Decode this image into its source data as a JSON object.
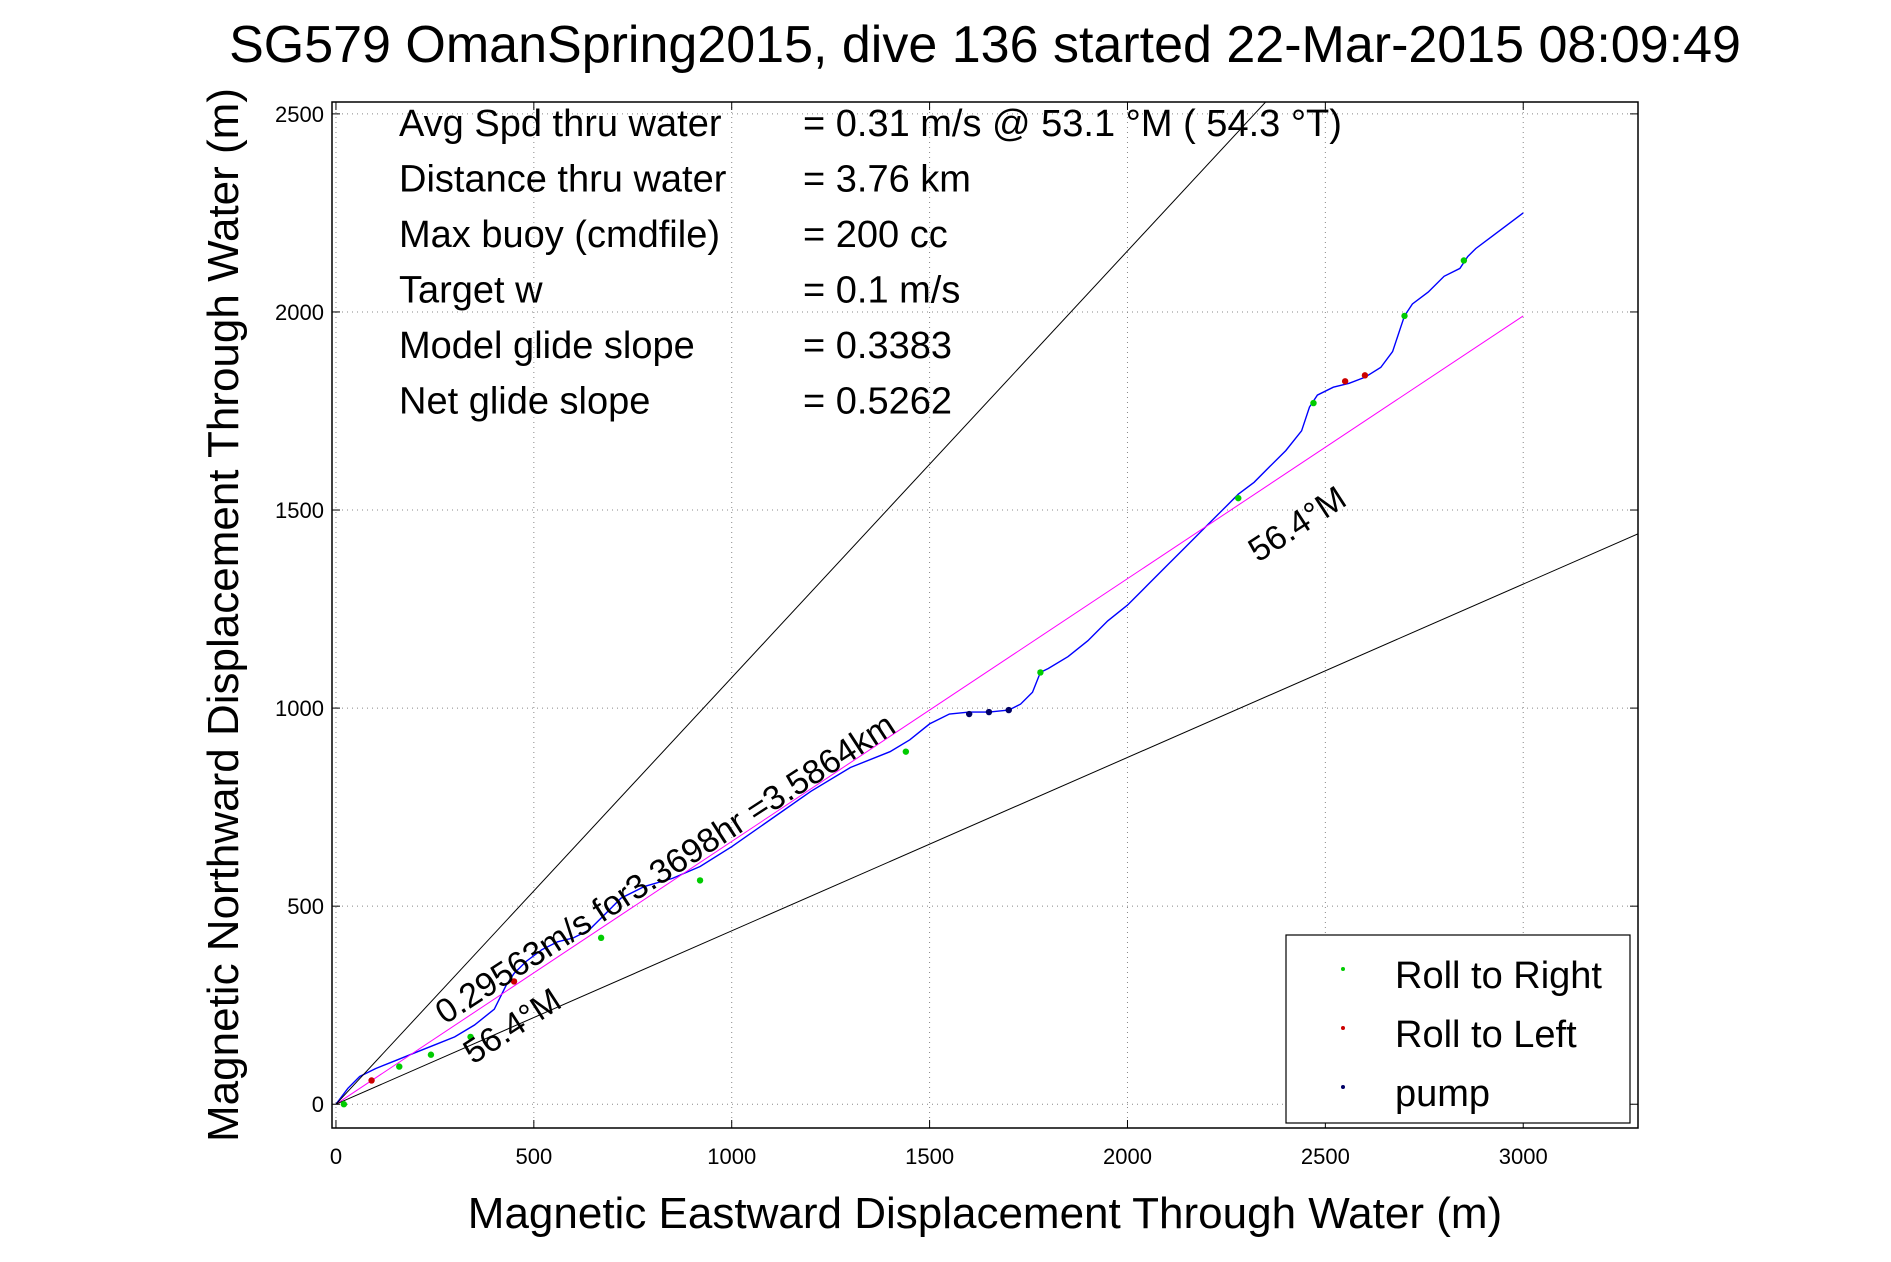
{
  "chart_data": {
    "type": "line",
    "title": "SG579 OmanSpring2015, dive 136 started 22-Mar-2015 08:09:49",
    "xlabel": "Magnetic Eastward Displacement Through Water (m)",
    "ylabel": "Magnetic Northward Displacement Through Water (m)",
    "xlim": [
      -10,
      3290
    ],
    "ylim": [
      -60,
      2530
    ],
    "xticks": [
      0,
      500,
      1000,
      1500,
      2000,
      2500,
      3000
    ],
    "yticks": [
      0,
      500,
      1000,
      1500,
      2000,
      2500
    ],
    "xtick_labels": [
      "0",
      "500",
      "1000",
      "1500",
      "2000",
      "2500",
      "3000"
    ],
    "ytick_labels": [
      "0",
      "500",
      "1000",
      "1500",
      "2000",
      "2500"
    ],
    "grid": true,
    "info_text": [
      {
        "label": "Avg Spd thru water",
        "value": "=  0.31 m/s @  53.1 °M ( 54.3 °T)"
      },
      {
        "label": "Distance thru water",
        "value": "=  3.76 km"
      },
      {
        "label": "Max buoy (cmdfile)",
        "value": "= 200 cc"
      },
      {
        "label": "Target w",
        "value": "= 0.1 m/s"
      },
      {
        "label": "Model glide slope",
        "value": "= 0.3383"
      },
      {
        "label": "Net glide slope",
        "value": "= 0.5262"
      }
    ],
    "annotations": {
      "current_text": "0.29563m/s for3.3698hr =3.5864km",
      "heading_upper": "56.4°M",
      "heading_lower": "56.4°M"
    },
    "series": [
      {
        "name": "track",
        "color": "#0000ff",
        "x": [
          0,
          30,
          60,
          100,
          150,
          200,
          250,
          300,
          350,
          400,
          430,
          450,
          480,
          520,
          560,
          600,
          640,
          680,
          720,
          780,
          850,
          920,
          1000,
          1100,
          1200,
          1300,
          1400,
          1450,
          1500,
          1550,
          1600,
          1650,
          1700,
          1730,
          1760,
          1780,
          1800,
          1850,
          1900,
          1950,
          2000,
          2050,
          2100,
          2150,
          2200,
          2250,
          2280,
          2320,
          2360,
          2400,
          2440,
          2460,
          2480,
          2520,
          2560,
          2600,
          2640,
          2670,
          2690,
          2700,
          2720,
          2760,
          2800,
          2840,
          2860,
          2880,
          2920,
          2960,
          3000
        ],
        "y": [
          0,
          40,
          70,
          90,
          110,
          130,
          150,
          170,
          200,
          240,
          300,
          330,
          360,
          390,
          410,
          420,
          440,
          480,
          520,
          550,
          570,
          600,
          650,
          720,
          790,
          850,
          890,
          920,
          960,
          985,
          990,
          990,
          995,
          1010,
          1040,
          1090,
          1100,
          1130,
          1170,
          1220,
          1260,
          1310,
          1360,
          1410,
          1460,
          1510,
          1540,
          1570,
          1610,
          1650,
          1700,
          1760,
          1790,
          1810,
          1820,
          1835,
          1860,
          1900,
          1960,
          1990,
          2020,
          2050,
          2090,
          2110,
          2140,
          2160,
          2190,
          2220,
          2250
        ]
      },
      {
        "name": "course",
        "color": "#ff00ff",
        "x": [
          0,
          3000
        ],
        "y": [
          0,
          1990
        ]
      },
      {
        "name": "heading-upper",
        "color": "#000000",
        "x": [
          0,
          2600
        ],
        "y": [
          0,
          2800
        ]
      },
      {
        "name": "heading-lower",
        "color": "#000000",
        "x": [
          0,
          3290
        ],
        "y": [
          0,
          1440
        ]
      }
    ],
    "markers": {
      "roll_right": {
        "label": "Roll to Right",
        "color": "#00cc00",
        "points": [
          [
            20,
            0
          ],
          [
            160,
            95
          ],
          [
            240,
            125
          ],
          [
            340,
            170
          ],
          [
            670,
            420
          ],
          [
            920,
            565
          ],
          [
            1440,
            890
          ],
          [
            1780,
            1090
          ],
          [
            2280,
            1530
          ],
          [
            2470,
            1770
          ],
          [
            2700,
            1990
          ],
          [
            2850,
            2130
          ]
        ]
      },
      "roll_left": {
        "label": "Roll to Left",
        "color": "#cc0000",
        "points": [
          [
            90,
            60
          ],
          [
            450,
            310
          ],
          [
            2550,
            1825
          ],
          [
            2600,
            1840
          ]
        ]
      },
      "pump": {
        "label": "pump",
        "color": "#000066",
        "points": [
          [
            1600,
            985
          ],
          [
            1650,
            990
          ],
          [
            1700,
            995
          ]
        ]
      }
    }
  }
}
